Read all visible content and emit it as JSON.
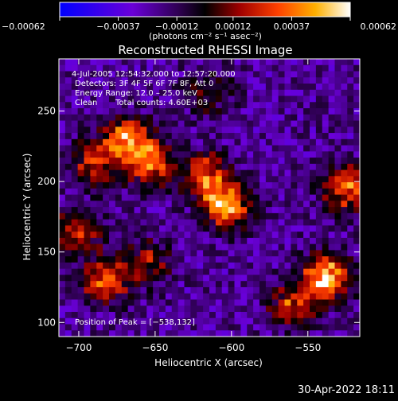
{
  "chart_data": {
    "type": "heatmap",
    "title": "Reconstructed RHESSI Image",
    "xlabel": "Heliocentric X (arcsec)",
    "ylabel": "Heliocentric Y (arcsec)",
    "xlim": [
      -713,
      -516
    ],
    "ylim": [
      90,
      287
    ],
    "x_ticks": [
      -700,
      -650,
      -600,
      -550
    ],
    "x_tick_labels": [
      "−700",
      "−650",
      "−600",
      "−550"
    ],
    "y_ticks": [
      100,
      150,
      200,
      250
    ],
    "y_tick_labels": [
      "100",
      "150",
      "200",
      "250"
    ],
    "colorbar": {
      "range": [
        -0.00062,
        0.00062
      ],
      "ticks": [
        -0.00062,
        -0.00037,
        -0.00012,
        0.00012,
        0.00037,
        0.00062
      ],
      "tick_labels": [
        "−0.00062",
        "−0.00037",
        "−0.00012",
        "0.00012",
        "0.00037",
        "0.00062"
      ],
      "label": "(photons cm⁻² s⁻¹ asec⁻²)"
    },
    "annotations": {
      "time_range": "4-Jul-2005 12:54:32.000 to 12:57:20.000",
      "detectors": "Detectors: 3F 4F 5F 6F 7F 8F, Att 0",
      "energy": "Energy Range: 12.0 – 25.0 keV",
      "method": "Clean",
      "counts": "Total counts: 4.60E+03",
      "peak": "Position of Peak = [−538,132]"
    },
    "sources": [
      {
        "x": -603,
        "y": 183,
        "level": 0.95
      },
      {
        "x": -617,
        "y": 205,
        "level": 0.7
      },
      {
        "x": -668,
        "y": 230,
        "level": 0.85
      },
      {
        "x": -652,
        "y": 212,
        "level": 0.75
      },
      {
        "x": -690,
        "y": 212,
        "level": 0.6
      },
      {
        "x": -700,
        "y": 165,
        "level": 0.55
      },
      {
        "x": -683,
        "y": 130,
        "level": 0.75
      },
      {
        "x": -655,
        "y": 143,
        "level": 0.5
      },
      {
        "x": -538,
        "y": 132,
        "level": 1.0
      },
      {
        "x": -525,
        "y": 195,
        "level": 0.8
      },
      {
        "x": -560,
        "y": 112,
        "level": 0.6
      },
      {
        "x": -615,
        "y": 262,
        "level": 0.35
      }
    ],
    "grid": false
  },
  "footer": {
    "timestamp": "30-Apr-2022 18:11"
  }
}
